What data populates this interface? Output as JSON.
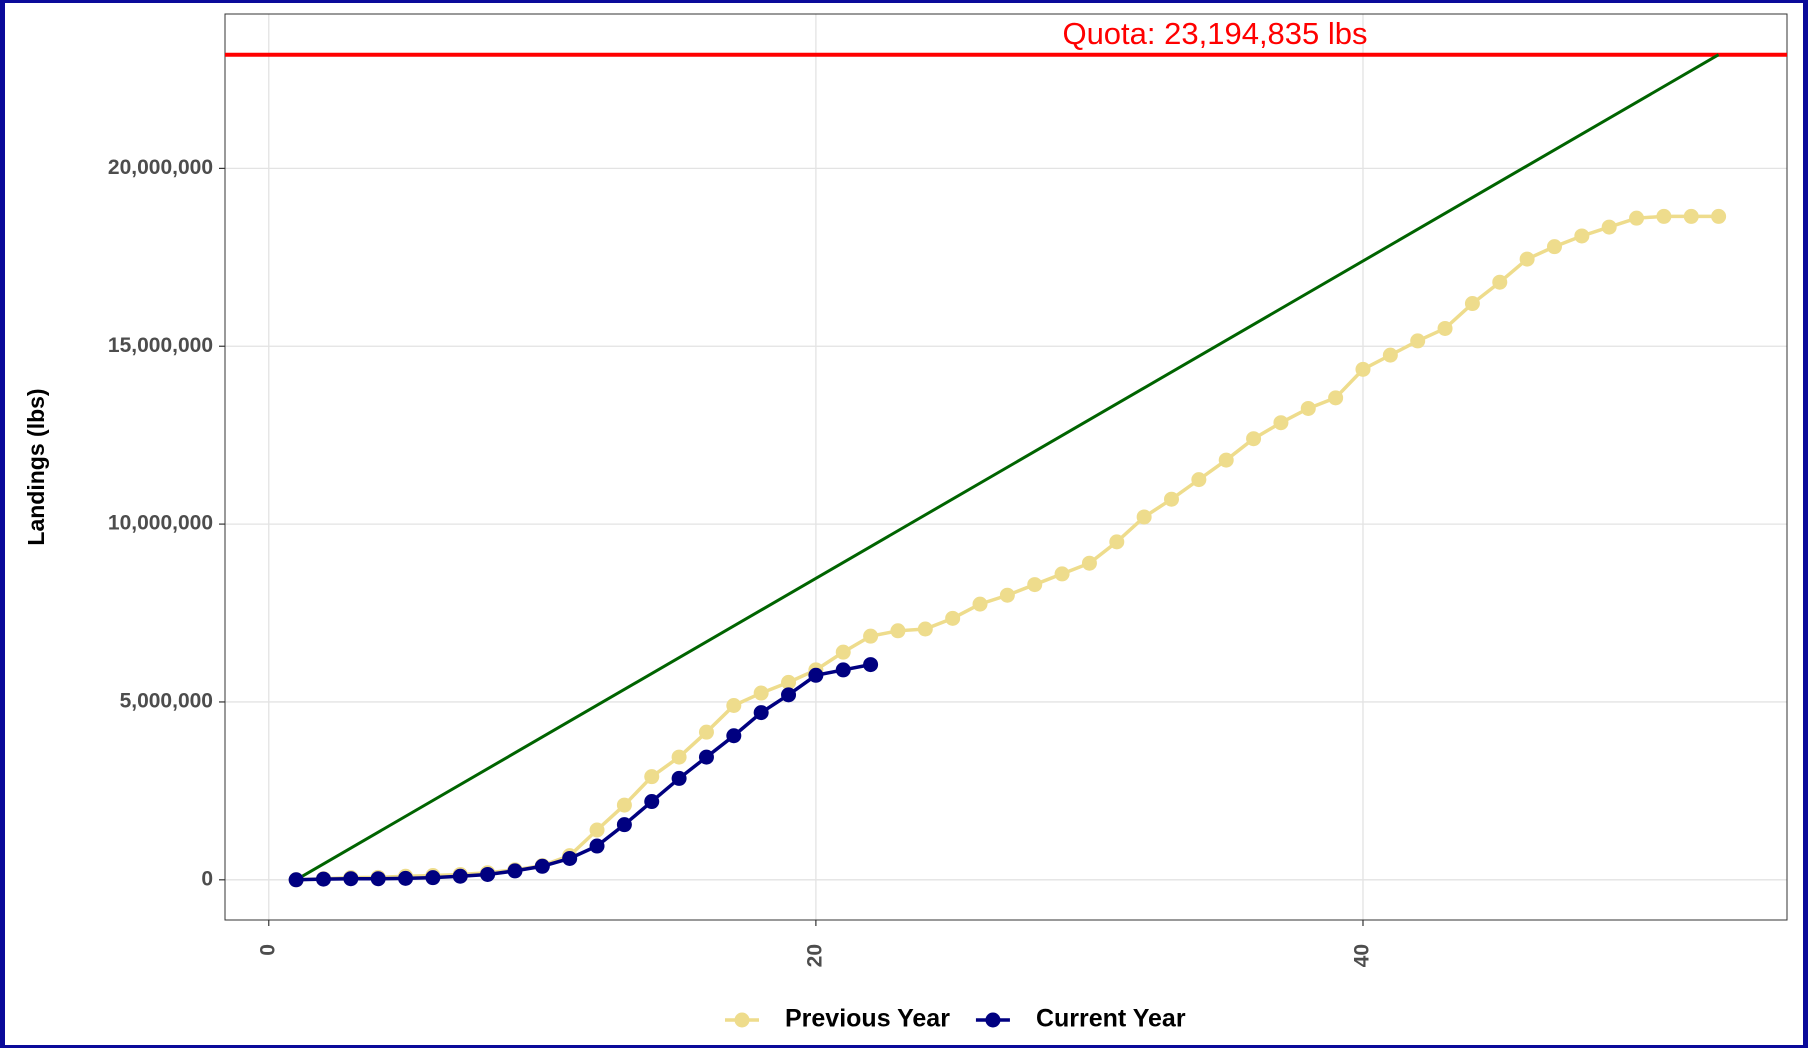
{
  "chart_data": {
    "type": "line",
    "y_label": "Landings (lbs)",
    "x": [
      1,
      2,
      3,
      4,
      5,
      6,
      7,
      8,
      9,
      10,
      11,
      12,
      13,
      14,
      15,
      16,
      17,
      18,
      19,
      20,
      21,
      22,
      23,
      24,
      25,
      26,
      27,
      28,
      29,
      30,
      31,
      32,
      33,
      34,
      35,
      36,
      37,
      38,
      39,
      40,
      41,
      42,
      43,
      44,
      45,
      46,
      47,
      48,
      49,
      50,
      51,
      52,
      53
    ],
    "series": [
      {
        "name": "Previous Year",
        "color": "#eedc8c",
        "values": [
          0,
          30000,
          60000,
          70000,
          100000,
          120000,
          150000,
          200000,
          280000,
          400000,
          680000,
          1400000,
          2100000,
          2900000,
          3450000,
          4150000,
          4900000,
          5250000,
          5550000,
          5900000,
          6400000,
          6850000,
          7000000,
          7050000,
          7350000,
          7750000,
          8000000,
          8300000,
          8600000,
          8900000,
          9500000,
          10200000,
          10700000,
          11250000,
          11800000,
          12400000,
          12850000,
          13250000,
          13550000,
          14350000,
          14750000,
          15150000,
          15500000,
          16200000,
          16800000,
          17450000,
          17800000,
          18100000,
          18350000,
          18600000,
          18650000,
          18650000,
          18650000
        ]
      },
      {
        "name": "Current Year",
        "color": "#000080",
        "values": [
          0,
          20000,
          30000,
          30000,
          40000,
          60000,
          100000,
          150000,
          250000,
          380000,
          600000,
          950000,
          1550000,
          2200000,
          2850000,
          3450000,
          4050000,
          4700000,
          5200000,
          5750000,
          5900000,
          6050000,
          null,
          null,
          null,
          null,
          null,
          null,
          null,
          null,
          null,
          null,
          null,
          null,
          null,
          null,
          null,
          null,
          null,
          null,
          null,
          null,
          null,
          null,
          null,
          null,
          null,
          null,
          null,
          null,
          null,
          null,
          null
        ]
      }
    ],
    "quota": {
      "value": 23194835,
      "label": "Quota: 23,194,835 lbs",
      "color": "#ff0000"
    },
    "target_line": {
      "x": [
        1,
        53
      ],
      "values": [
        0,
        23194835
      ],
      "color": "#006400"
    },
    "xlim": [
      -1.6,
      55.5
    ],
    "ylim": [
      -1130000,
      24340000
    ],
    "xticks": [
      0,
      20,
      40
    ],
    "yticks": [
      0,
      {
        "value": 5000000,
        "label": "5,000,000"
      },
      {
        "value": 10000000,
        "label": "10,000,000"
      },
      {
        "value": 15000000,
        "label": "15,000,000"
      },
      {
        "value": 20000000,
        "label": "20,000,000"
      }
    ],
    "grid": true,
    "legend": "bottom"
  }
}
